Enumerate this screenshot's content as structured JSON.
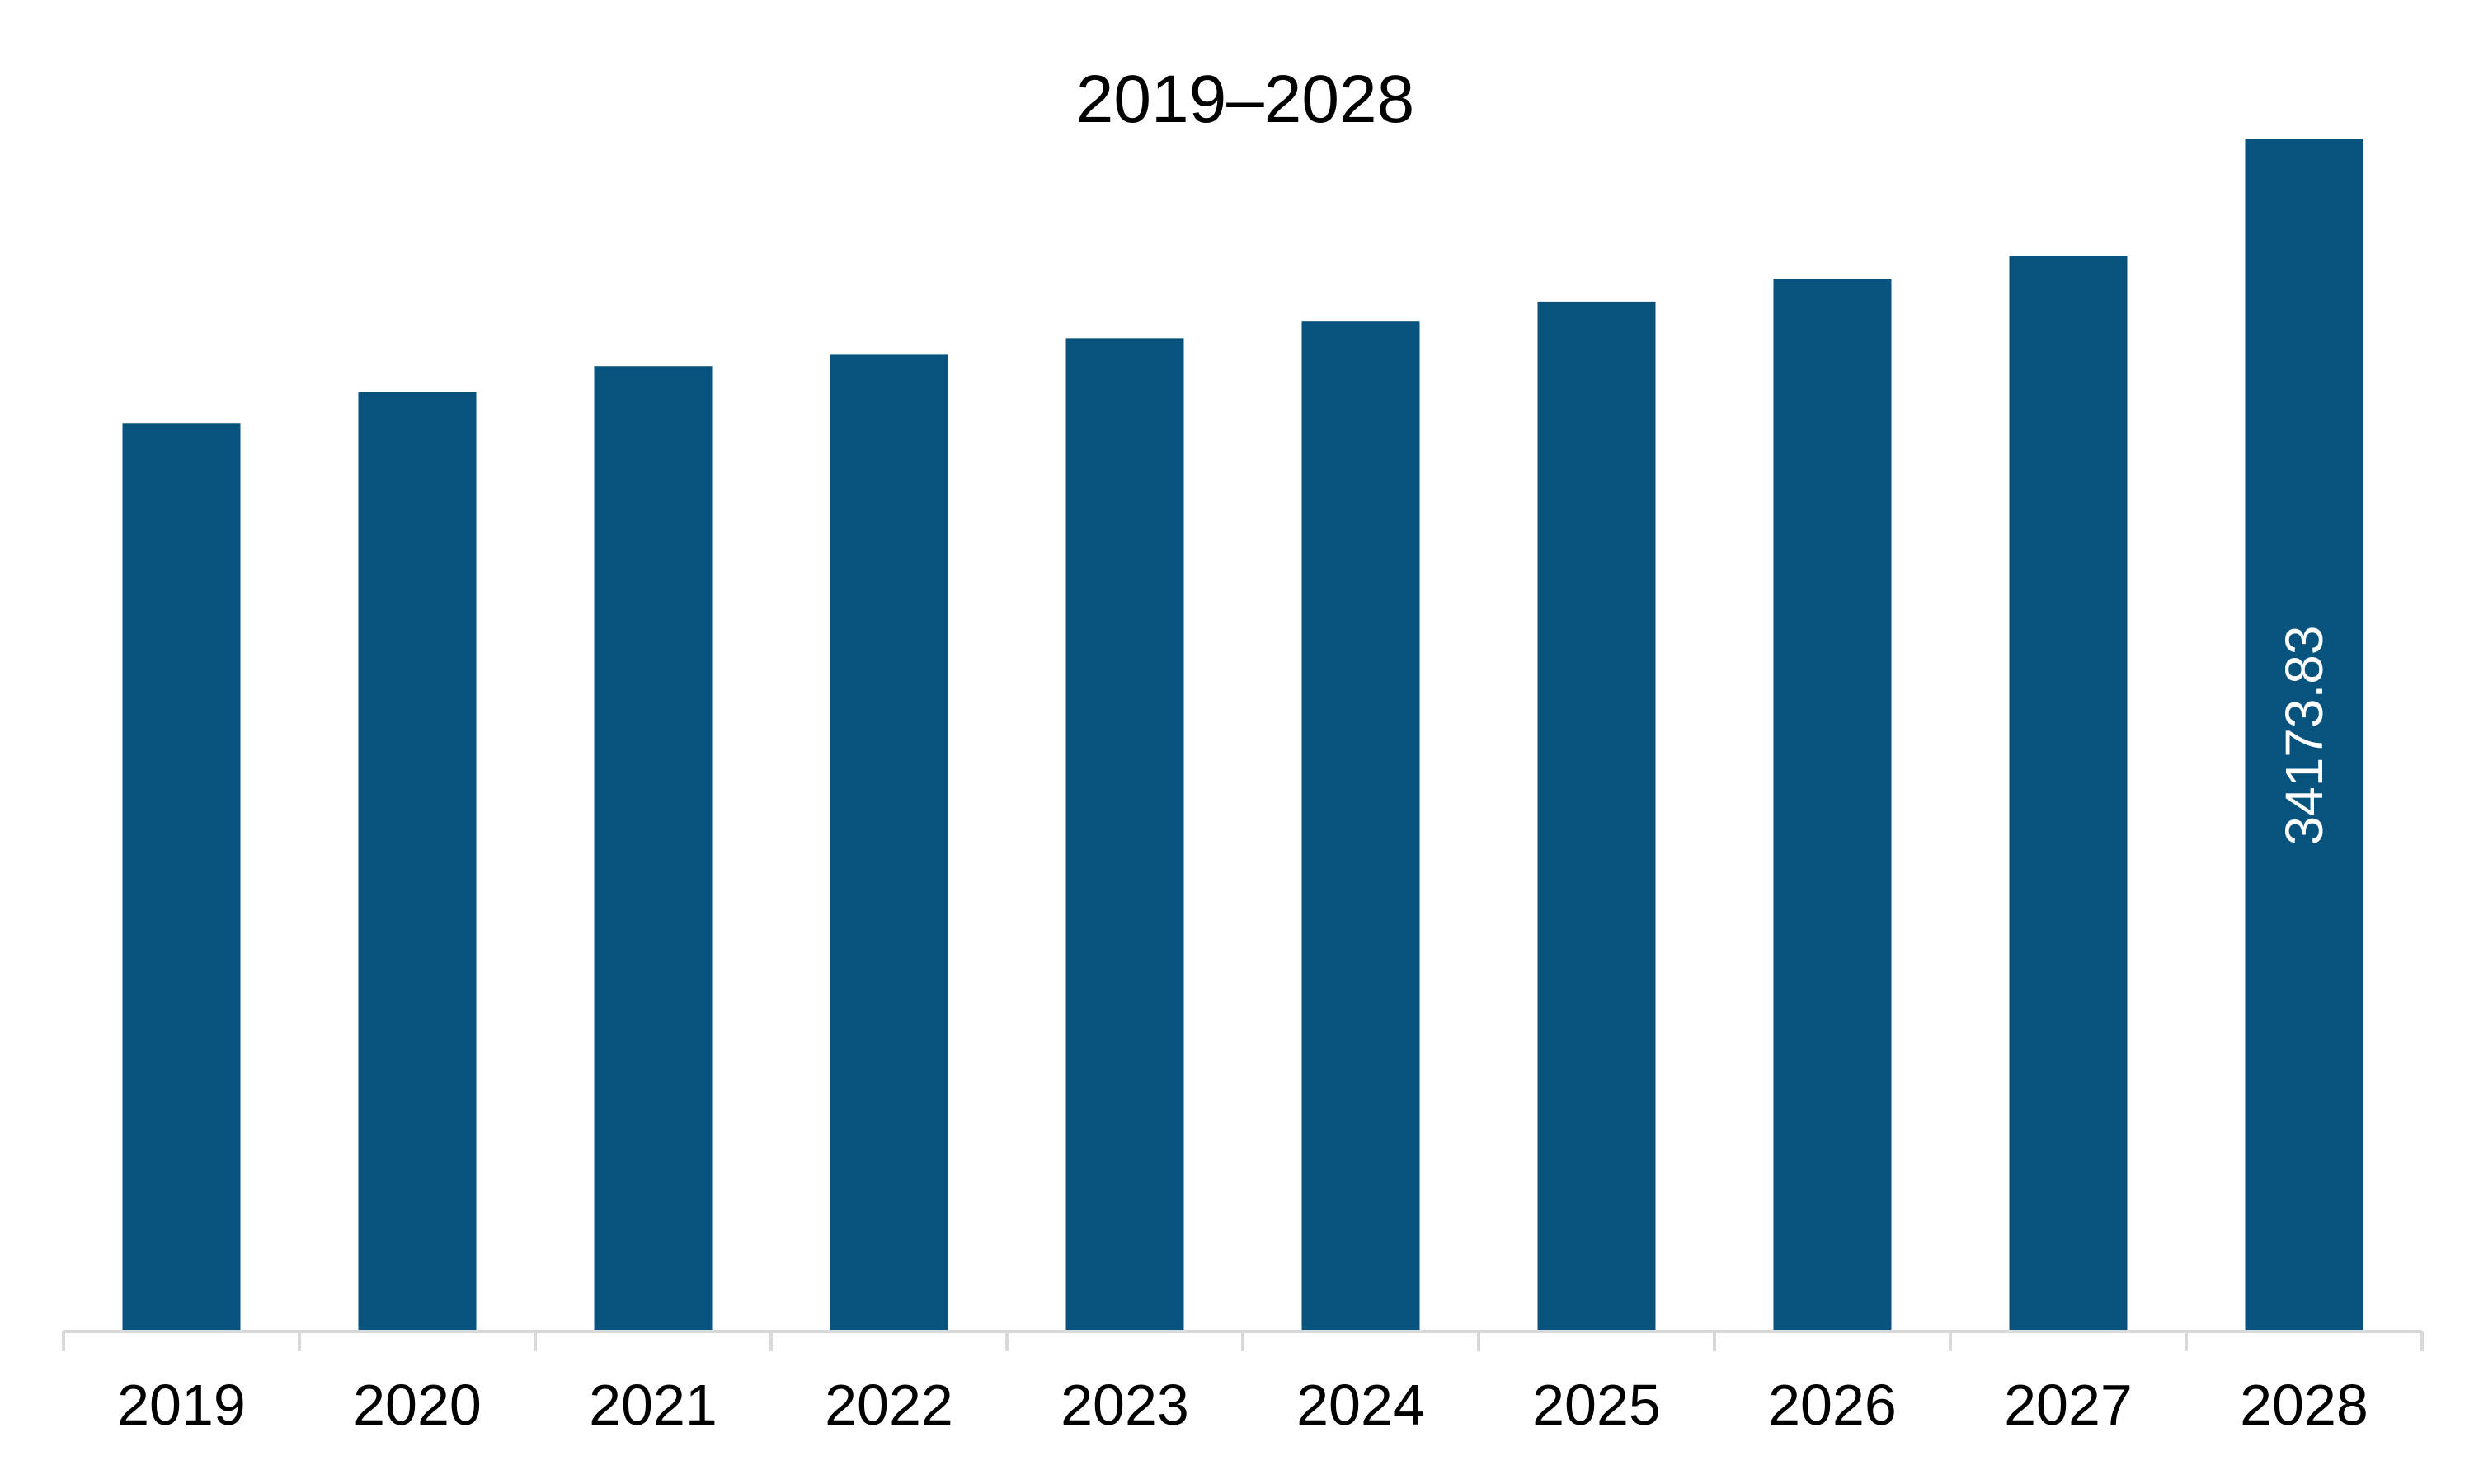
{
  "chart_data": {
    "type": "bar",
    "title": "2019–2028",
    "categories": [
      "2019",
      "2020",
      "2021",
      "2022",
      "2023",
      "2024",
      "2025",
      "2026",
      "2027",
      "2028"
    ],
    "values": [
      26020,
      26900,
      27650,
      28000,
      28450,
      28950,
      29500,
      30150,
      30820,
      34173.83
    ],
    "data_labels": [
      "",
      "",
      "",
      "",
      "",
      "",
      "",
      "",
      "",
      "34173.83"
    ],
    "xlabel": "",
    "ylabel": "",
    "ylim": [
      0,
      34173.83
    ],
    "grid": false,
    "legend": "none",
    "bar_color": "#08527E",
    "axis_color": "#D9D9D9"
  }
}
